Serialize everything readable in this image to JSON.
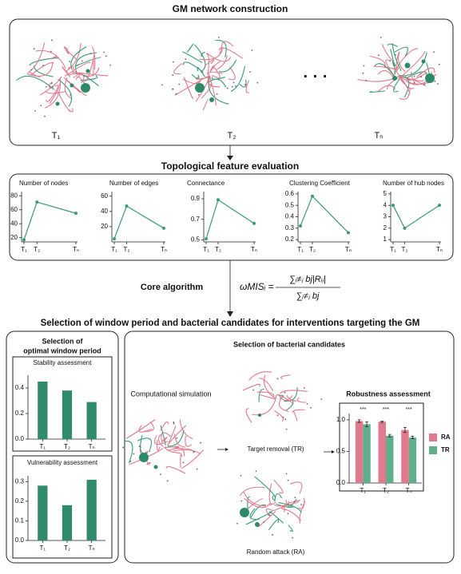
{
  "header": {
    "title": "GM network construction",
    "time_points": [
      "T₁",
      "T₂",
      "Tₙ"
    ],
    "ellipsis": "· · ·"
  },
  "topology": {
    "title": "Topological feature evaluation"
  },
  "core_algorithm": {
    "label": "Core algorithm",
    "formula": {
      "lhs": "ωMISᵢ =",
      "numerator": "∑ᵢ≠ⱼ bj|Rᵢⱼ|",
      "denominator": "∑ᵢ≠ⱼ bj"
    }
  },
  "selection": {
    "title": "Selection of window period and bacterial candidates for interventions targeting the GM",
    "window_title_lines": [
      "Selection of",
      "optimal window period"
    ],
    "candidates_title": "Selection of bacterial candidates",
    "simulation_label": "Computational simulation",
    "target_removal_label": "Target removal (TR)",
    "random_attack_label": "Random attack (RA)"
  },
  "chart_data": [
    {
      "type": "line",
      "title": "Number of nodes",
      "categories": [
        "T₁",
        "T₂",
        "Tₙ"
      ],
      "values": [
        17,
        71,
        55
      ],
      "color": "#3a9a78",
      "ylim": [
        14,
        86
      ],
      "yticks": [
        20,
        40,
        60,
        80
      ]
    },
    {
      "type": "line",
      "title": "Number of edges",
      "categories": [
        "T₁",
        "T₂",
        "Tₙ"
      ],
      "values": [
        4,
        47,
        18
      ],
      "color": "#3a9a78",
      "ylim": [
        0,
        66
      ],
      "yticks": [
        20,
        40,
        60
      ]
    },
    {
      "type": "line",
      "title": "Connectance",
      "categories": [
        "T₁",
        "T₂",
        "Tₙ"
      ],
      "values": [
        0.51,
        0.89,
        0.66
      ],
      "color": "#3a9a78",
      "ylim": [
        0.48,
        0.97
      ],
      "yticks": [
        0.5,
        0.7,
        0.9
      ]
    },
    {
      "type": "line",
      "title": "Clustering Coefficient",
      "categories": [
        "T₁",
        "T₂",
        "Tₙ"
      ],
      "values": [
        0.32,
        0.58,
        0.26
      ],
      "color": "#3a9a78",
      "ylim": [
        0.18,
        0.62
      ],
      "yticks": [
        0.2,
        0.3,
        0.4,
        0.5,
        0.6
      ]
    },
    {
      "type": "line",
      "title": "Number of hub nodes",
      "categories": [
        "T₁",
        "T₂",
        "Tₙ"
      ],
      "values": [
        4,
        2,
        4
      ],
      "color": "#3a9a78",
      "ylim": [
        0.8,
        5.2
      ],
      "yticks": [
        1,
        2,
        3,
        4,
        5
      ]
    },
    {
      "type": "bar",
      "title": "Stability assessment",
      "categories": [
        "T₁",
        "T₂",
        "Tₙ"
      ],
      "values": [
        0.45,
        0.38,
        0.29
      ],
      "color": "#2f8a6e",
      "ylim": [
        0,
        0.5
      ],
      "yticks": [
        {
          "value": 0,
          "label": "0.0"
        },
        0.2,
        0.4
      ]
    },
    {
      "type": "bar",
      "title": "Vulnerability assessment",
      "categories": [
        "T₁",
        "T₂",
        "Tₙ"
      ],
      "values": [
        0.28,
        0.18,
        0.31
      ],
      "color": "#2f8a6e",
      "ylim": [
        0,
        0.33
      ],
      "yticks": [
        {
          "value": 0,
          "label": "0.0"
        },
        0.1,
        0.2,
        0.3
      ]
    },
    {
      "type": "grouped_bar",
      "title": "Robustness assessment",
      "categories": [
        "T₁",
        "T₂",
        "Tₙ"
      ],
      "series": [
        {
          "name": "RA",
          "color": "#e07a8c",
          "values": [
            0.98,
            0.97,
            0.84
          ],
          "errors": [
            0.02,
            0.01,
            0.04
          ]
        },
        {
          "name": "TR",
          "color": "#5fae8c",
          "values": [
            0.93,
            0.75,
            0.72
          ],
          "errors": [
            0.04,
            0.02,
            0.02
          ]
        }
      ],
      "annotations": [
        "***",
        "***",
        "***"
      ],
      "ylim": [
        0,
        1.1
      ],
      "yticks": [
        {
          "value": 0,
          "label": "0.0"
        },
        0.5,
        {
          "value": 1,
          "label": "1.0"
        }
      ]
    }
  ]
}
